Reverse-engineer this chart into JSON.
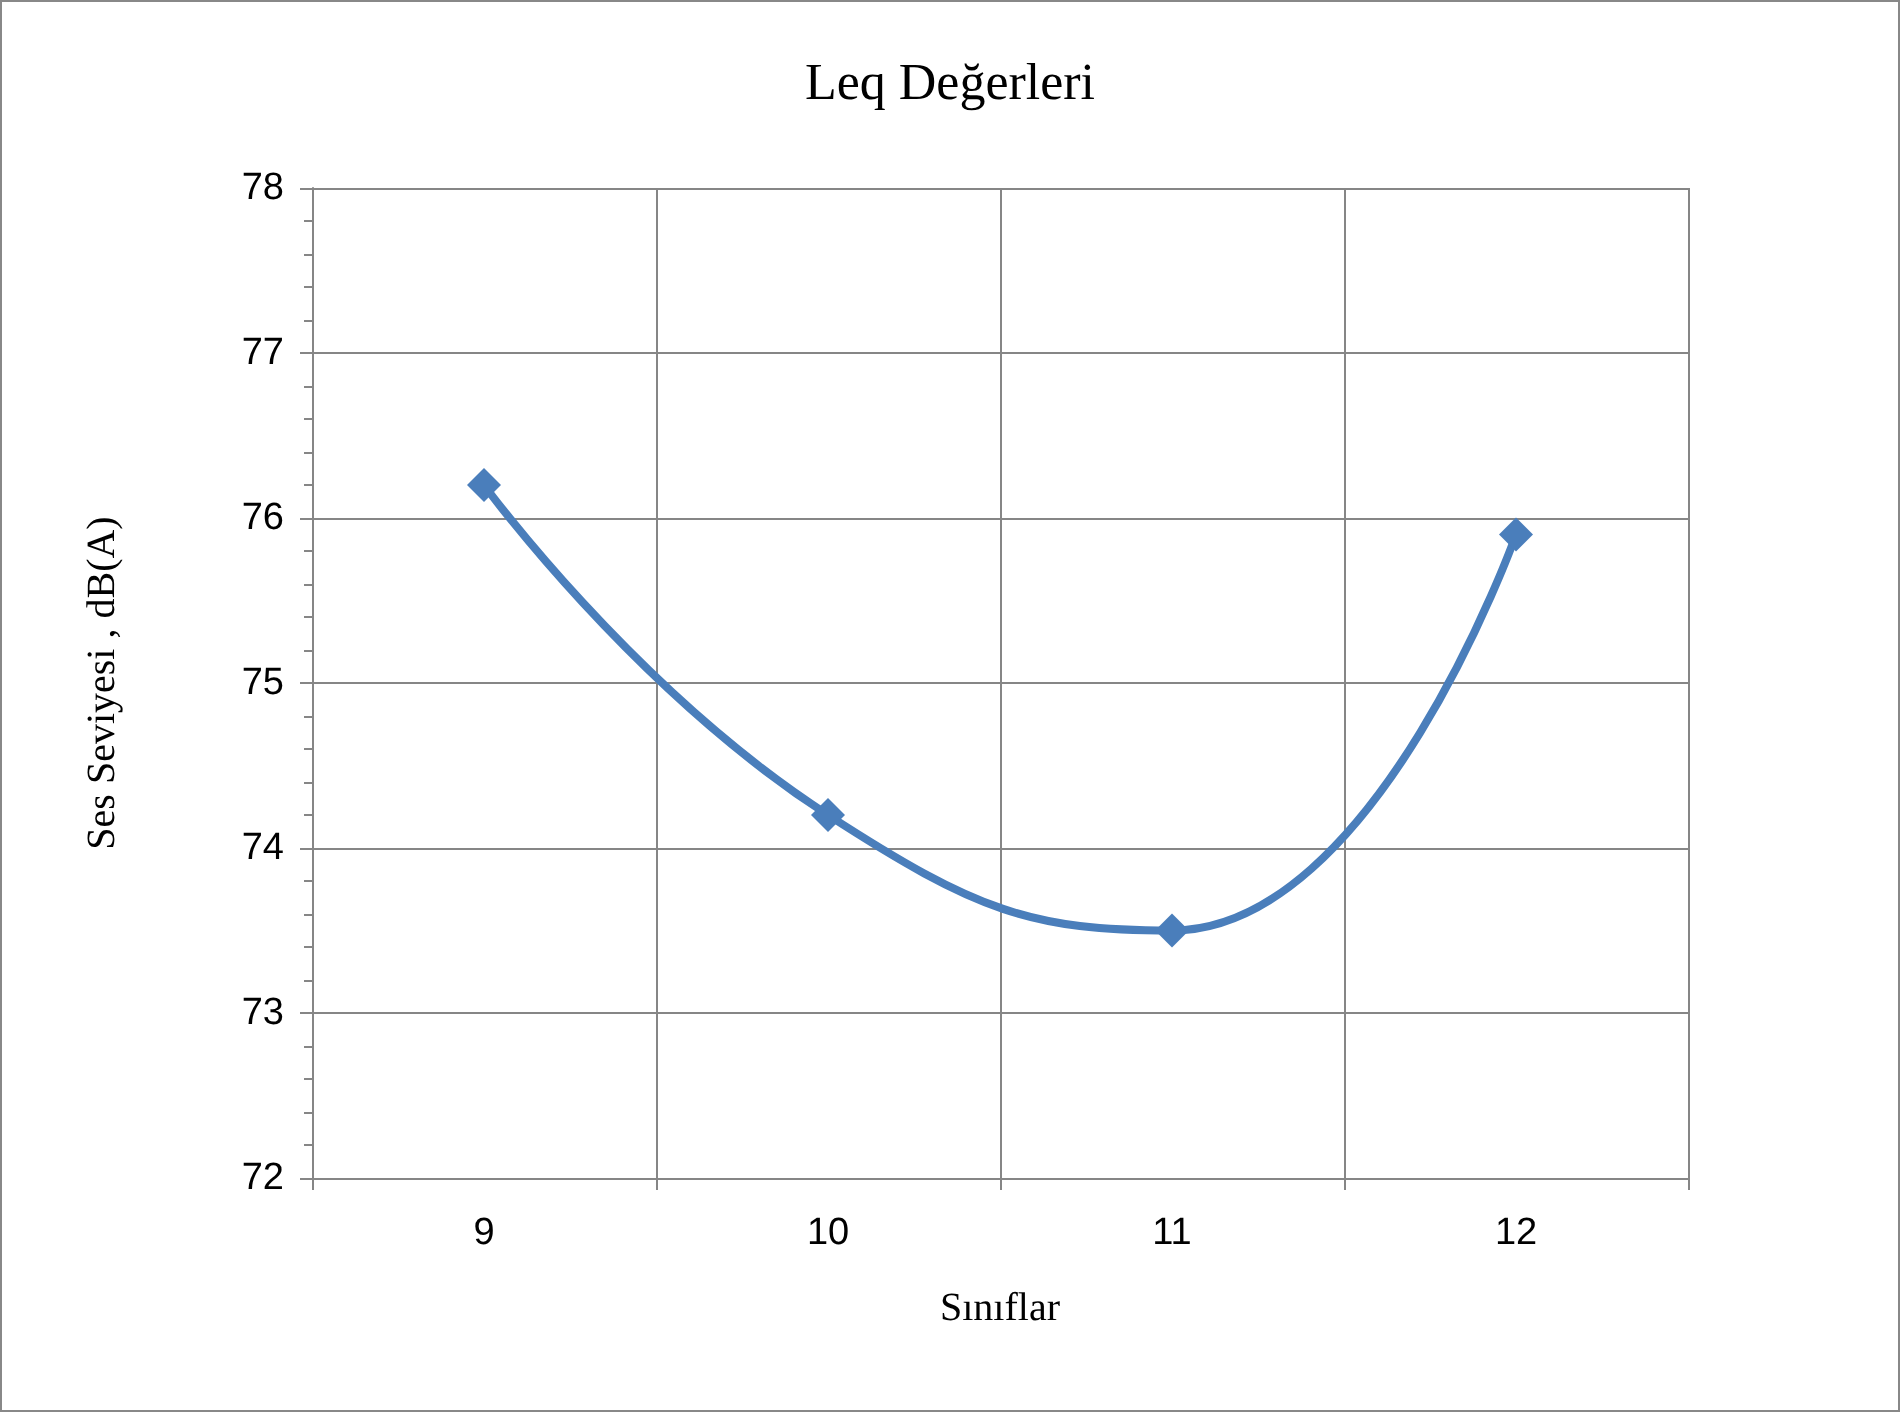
{
  "chart_data": {
    "type": "line",
    "title": "Leq Değerleri",
    "xlabel": "Sınıflar",
    "ylabel": "Ses Seviyesi , dB(A)",
    "categories": [
      "9",
      "10",
      "11",
      "12"
    ],
    "series": [
      {
        "color": "#4a7ebb",
        "values": [
          76.2,
          74.2,
          73.5,
          75.9
        ]
      }
    ],
    "ylim": [
      72,
      78
    ],
    "yticks": [
      72,
      73,
      74,
      75,
      76,
      77,
      78
    ],
    "grid": true,
    "marker": "diamond",
    "line_style": "solid"
  }
}
